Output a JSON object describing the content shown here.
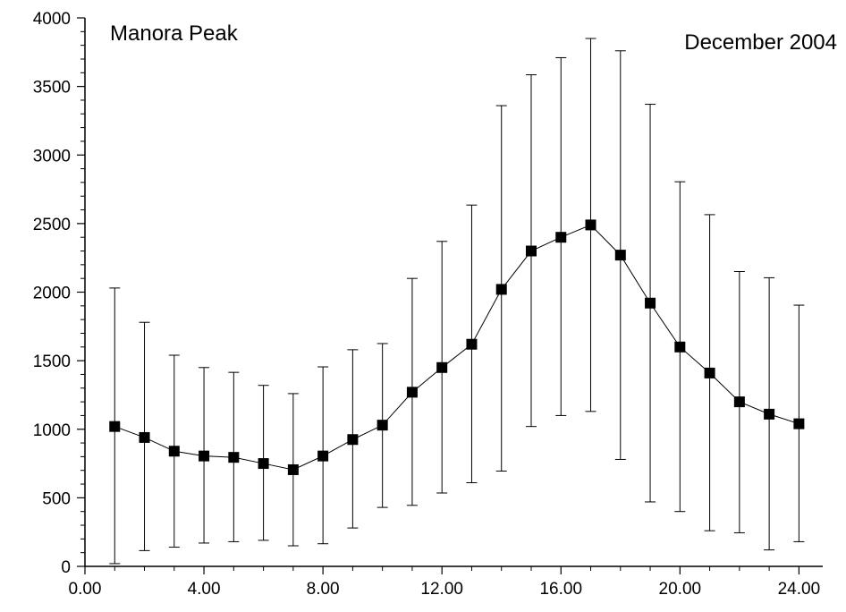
{
  "chart_data": {
    "type": "line",
    "title": "Manora Peak",
    "subtitle": "December 2004",
    "xlabel": "",
    "ylabel": "",
    "xlim": [
      0,
      24.8
    ],
    "ylim": [
      0,
      4000
    ],
    "x_ticks": [
      0,
      4,
      8,
      12,
      16,
      20,
      24
    ],
    "x_tick_labels": [
      "0.00",
      "4.00",
      "8.00",
      "12.00",
      "16.00",
      "20.00",
      "24.00"
    ],
    "y_ticks": [
      0,
      500,
      1000,
      1500,
      2000,
      2500,
      3000,
      3500,
      4000
    ],
    "y_tick_labels": [
      "0",
      "500",
      "1000",
      "1500",
      "2000",
      "2500",
      "3000",
      "3500",
      "4000"
    ],
    "grid": false,
    "marker": "square",
    "color": "#000000",
    "series": [
      {
        "x": [
          1,
          2,
          3,
          4,
          5,
          6,
          7,
          8,
          9,
          10,
          11,
          12,
          13,
          14,
          15,
          16,
          17,
          18,
          19,
          20,
          21,
          22,
          23,
          24
        ],
        "y": [
          1020,
          940,
          840,
          805,
          795,
          750,
          705,
          805,
          925,
          1030,
          1270,
          1450,
          1620,
          2020,
          2300,
          2400,
          2490,
          2270,
          1920,
          1600,
          1410,
          1200,
          1110,
          1040
        ],
        "y_upper": [
          2030,
          1780,
          1540,
          1450,
          1415,
          1320,
          1260,
          1455,
          1580,
          1625,
          2100,
          2370,
          2635,
          3360,
          3585,
          3710,
          3850,
          3760,
          3370,
          2805,
          2565,
          2150,
          2105,
          1905
        ],
        "y_lower": [
          20,
          115,
          140,
          170,
          180,
          190,
          150,
          165,
          280,
          430,
          445,
          535,
          610,
          695,
          1020,
          1100,
          1130,
          780,
          470,
          400,
          260,
          245,
          120,
          180
        ]
      }
    ]
  }
}
